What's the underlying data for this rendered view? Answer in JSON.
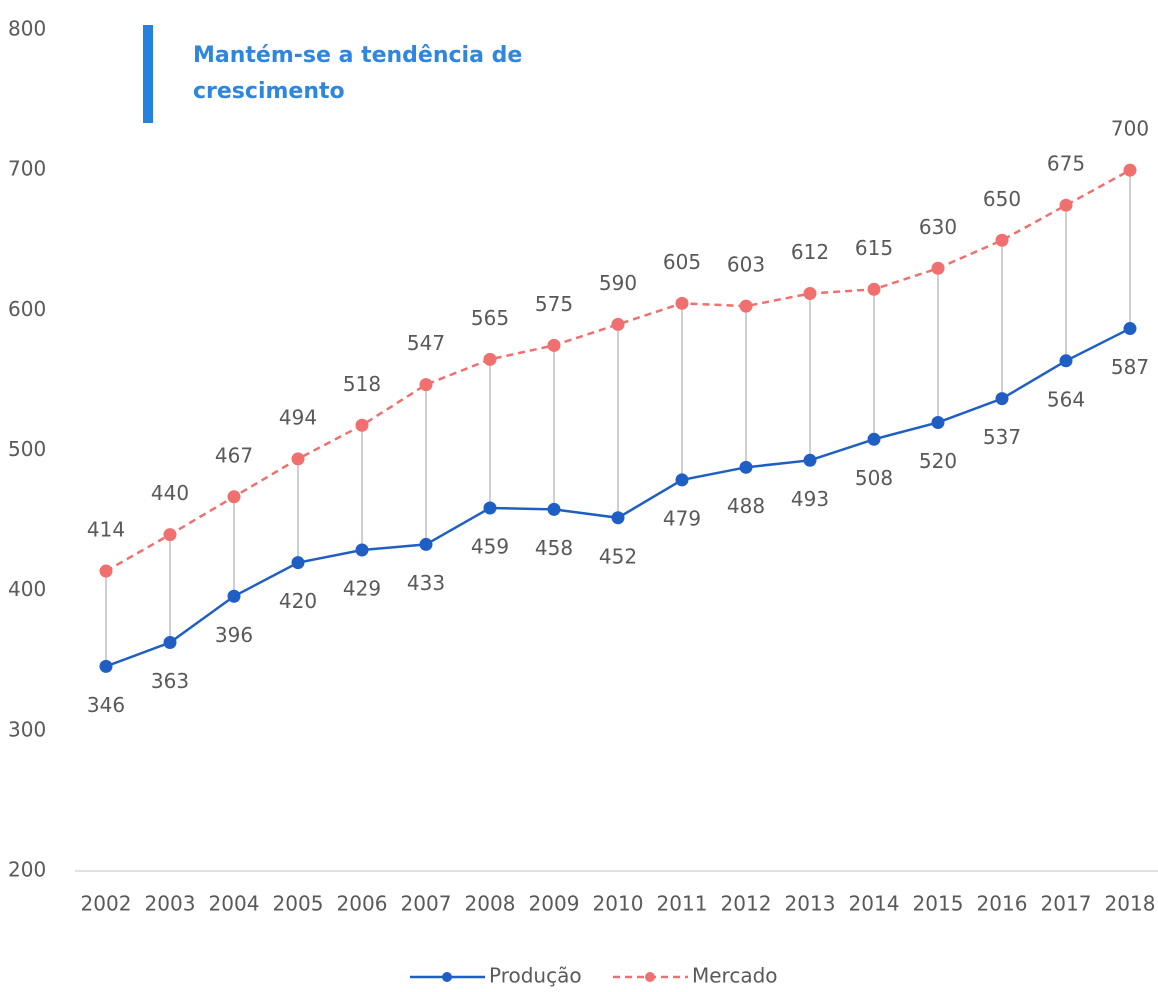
{
  "chart_data": {
    "type": "line",
    "title": "Mantém-se a tendência de crescimento",
    "categories": [
      "2002",
      "2003",
      "2004",
      "2005",
      "2006",
      "2007",
      "2008",
      "2009",
      "2010",
      "2011",
      "2012",
      "2013",
      "2014",
      "2015",
      "2016",
      "2017",
      "2018"
    ],
    "series": [
      {
        "name": "Produção",
        "color": "#1f5fc4",
        "dash": false,
        "values": [
          346,
          363,
          396,
          420,
          429,
          433,
          459,
          458,
          452,
          479,
          488,
          493,
          508,
          520,
          537,
          564,
          587
        ]
      },
      {
        "name": "Mercado",
        "color": "#f07070",
        "dash": true,
        "values": [
          414,
          440,
          467,
          494,
          518,
          547,
          565,
          575,
          590,
          605,
          603,
          612,
          615,
          630,
          650,
          675,
          700
        ]
      }
    ],
    "ylim": [
      200,
      800
    ],
    "yticks": [
      200,
      300,
      400,
      500,
      600,
      700,
      800
    ],
    "grid": false,
    "legend": "bottom"
  }
}
